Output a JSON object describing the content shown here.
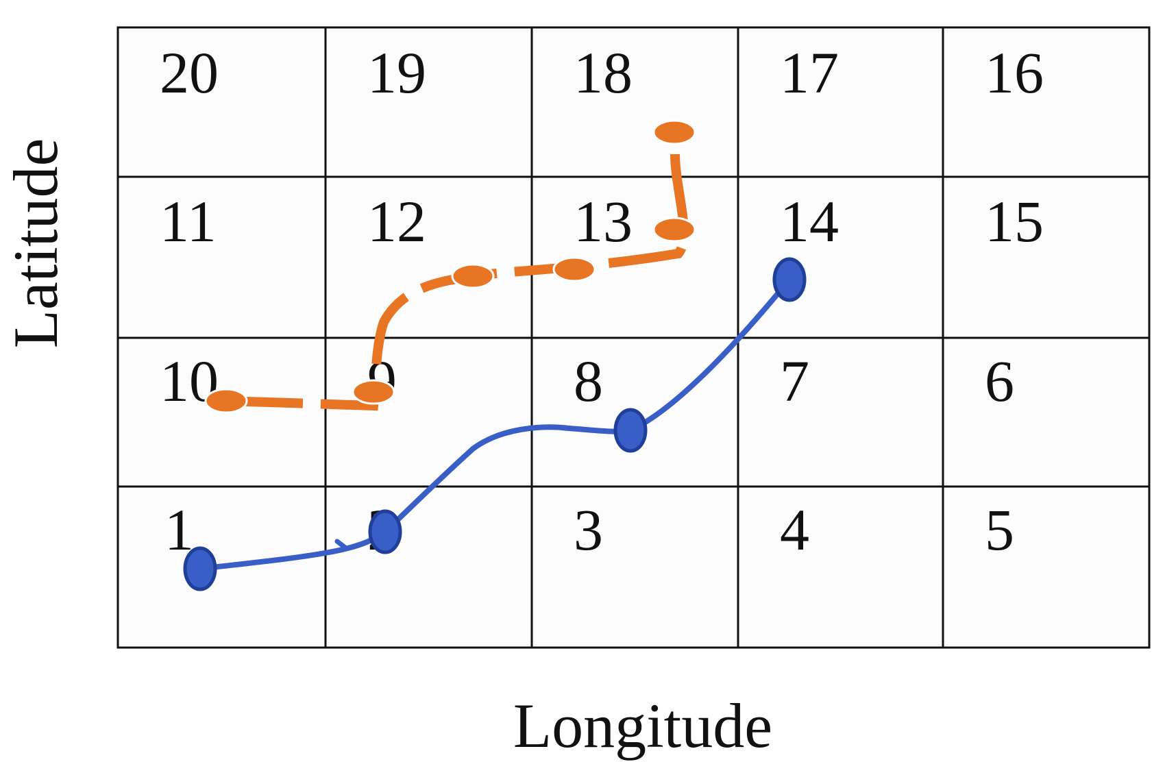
{
  "axes": {
    "x_label": "Longitude",
    "y_label": "Latitude"
  },
  "grid": {
    "rows": [
      [
        "20",
        "19",
        "18",
        "17",
        "16"
      ],
      [
        "11",
        "12",
        "13",
        "14",
        "15"
      ],
      [
        "10",
        "9",
        "8",
        "7",
        "6"
      ],
      [
        "1",
        "2",
        "3",
        "4",
        "5"
      ]
    ]
  },
  "paths": [
    {
      "style": "dashed",
      "color": "#E87524",
      "cells": [
        "10",
        "9",
        "12",
        "13",
        "13",
        "18"
      ]
    },
    {
      "style": "solid",
      "color": "#3A5EC8",
      "cells": [
        "1",
        "2",
        "8",
        "14"
      ]
    }
  ],
  "colors": {
    "grid_line": "#111111",
    "background": "#ffffff",
    "cell_fill": "#fcfcfc"
  }
}
